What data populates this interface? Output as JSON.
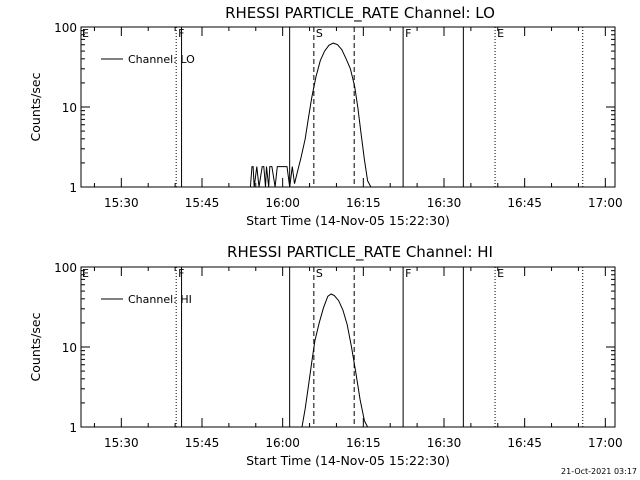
{
  "timestamp": "21-Oct-2021 03:17",
  "chart_data": [
    {
      "type": "line",
      "title": "RHESSI PARTICLE_RATE Channel: LO",
      "xlabel": "Start Time (14-Nov-05 15:22:30)",
      "ylabel": "Counts/sec",
      "y_scale": "log",
      "ylim": [
        1,
        100
      ],
      "x_units": "minutes since 15:00",
      "xlim": [
        22.5,
        121.8
      ],
      "x_ticks": [
        {
          "value": 30,
          "label": "15:30"
        },
        {
          "value": 45,
          "label": "15:45"
        },
        {
          "value": 60,
          "label": "16:00"
        },
        {
          "value": 75,
          "label": "16:15"
        },
        {
          "value": 90,
          "label": "16:30"
        },
        {
          "value": 105,
          "label": "16:45"
        },
        {
          "value": 120,
          "label": "17:00"
        }
      ],
      "y_ticks": [
        {
          "value": 1,
          "label": "1"
        },
        {
          "value": 10,
          "label": "10"
        },
        {
          "value": 100,
          "label": "100"
        }
      ],
      "legend": {
        "label": "Channel: LO",
        "position": "top-left"
      },
      "vlines": [
        {
          "x": 40.2,
          "style": "dotted",
          "label": "F"
        },
        {
          "x": 41.2,
          "style": "solid",
          "label": ""
        },
        {
          "x": 61.3,
          "style": "solid",
          "label": ""
        },
        {
          "x": 65.8,
          "style": "dashed",
          "label": "S"
        },
        {
          "x": 73.3,
          "style": "dashed",
          "label": ""
        },
        {
          "x": 82.4,
          "style": "solid",
          "label": "F"
        },
        {
          "x": 93.6,
          "style": "solid",
          "label": ""
        },
        {
          "x": 99.5,
          "style": "dotted",
          "label": "E"
        },
        {
          "x": 115.8,
          "style": "dotted",
          "label": ""
        }
      ],
      "axis_markers": [
        {
          "x": 22.5,
          "label": "E"
        }
      ],
      "series": [
        {
          "name": "Channel: LO",
          "x": [
            53.2,
            54.0,
            54.3,
            54.5,
            54.7,
            55.2,
            55.6,
            56.2,
            56.5,
            56.8,
            57.0,
            57.4,
            57.6,
            58.0,
            58.6,
            59.0,
            59.6,
            60.2,
            60.8,
            61.3,
            61.8,
            62.2,
            62.8,
            63.4,
            64.2,
            64.8,
            65.4,
            66.2,
            67.0,
            67.8,
            68.6,
            69.4,
            70.2,
            71.0,
            71.8,
            72.6,
            73.4,
            74.0,
            74.6,
            75.2,
            75.8,
            76.4
          ],
          "y": [
            1,
            1,
            1.8,
            1.8,
            1,
            1.8,
            1,
            1.8,
            1.8,
            1,
            1.8,
            1,
            1.8,
            1.8,
            1,
            1.8,
            1.8,
            1.8,
            1.8,
            1,
            1.8,
            1.1,
            1.6,
            2.3,
            4,
            7.4,
            13,
            24,
            38,
            50,
            59,
            63,
            60,
            52,
            40,
            30,
            18,
            9.7,
            4.5,
            2.2,
            1.2,
            1
          ]
        }
      ]
    },
    {
      "type": "line",
      "title": "RHESSI PARTICLE_RATE Channel: HI",
      "xlabel": "Start Time (14-Nov-05 15:22:30)",
      "ylabel": "Counts/sec",
      "y_scale": "log",
      "ylim": [
        1,
        100
      ],
      "x_units": "minutes since 15:00",
      "xlim": [
        22.5,
        121.8
      ],
      "x_ticks": [
        {
          "value": 30,
          "label": "15:30"
        },
        {
          "value": 45,
          "label": "15:45"
        },
        {
          "value": 60,
          "label": "16:00"
        },
        {
          "value": 75,
          "label": "16:15"
        },
        {
          "value": 90,
          "label": "16:30"
        },
        {
          "value": 105,
          "label": "16:45"
        },
        {
          "value": 120,
          "label": "17:00"
        }
      ],
      "y_ticks": [
        {
          "value": 1,
          "label": "1"
        },
        {
          "value": 10,
          "label": "10"
        },
        {
          "value": 100,
          "label": "100"
        }
      ],
      "legend": {
        "label": "Channel: HI",
        "position": "top-left"
      },
      "vlines": [
        {
          "x": 40.2,
          "style": "dotted",
          "label": "F"
        },
        {
          "x": 41.2,
          "style": "solid",
          "label": ""
        },
        {
          "x": 61.3,
          "style": "solid",
          "label": ""
        },
        {
          "x": 65.8,
          "style": "dashed",
          "label": "S"
        },
        {
          "x": 73.3,
          "style": "dashed",
          "label": ""
        },
        {
          "x": 82.4,
          "style": "solid",
          "label": "F"
        },
        {
          "x": 93.6,
          "style": "solid",
          "label": ""
        },
        {
          "x": 99.5,
          "style": "dotted",
          "label": "E"
        },
        {
          "x": 115.8,
          "style": "dotted",
          "label": ""
        }
      ],
      "axis_markers": [
        {
          "x": 22.5,
          "label": "E"
        }
      ],
      "series": [
        {
          "name": "Channel: HI",
          "x": [
            63.6,
            64.2,
            64.8,
            65.4,
            66.0,
            66.8,
            67.6,
            68.4,
            69.0,
            69.6,
            70.4,
            71.2,
            72.0,
            72.8,
            73.6,
            74.4,
            75.2,
            75.8
          ],
          "y": [
            1,
            1.7,
            3.3,
            6.4,
            12,
            20,
            31,
            43,
            46,
            44,
            38,
            29,
            19,
            10,
            4.8,
            2.2,
            1.2,
            1
          ]
        }
      ]
    }
  ]
}
